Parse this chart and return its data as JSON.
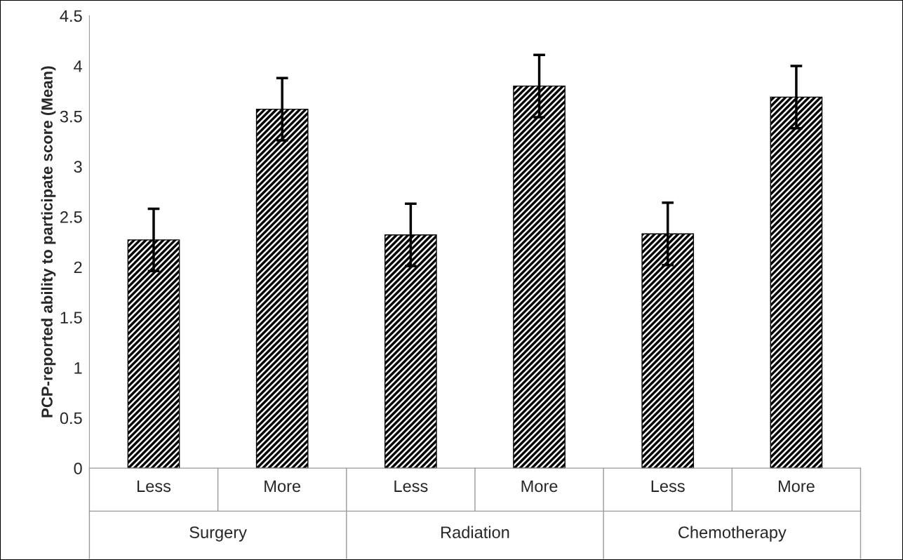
{
  "chart_data": {
    "type": "bar",
    "ylabel": "PCP-reported ability to participate score (Mean)",
    "categories": [
      "Less",
      "More",
      "Less",
      "More",
      "Less",
      "More"
    ],
    "values": [
      2.27,
      3.57,
      2.32,
      3.8,
      2.33,
      3.69
    ],
    "errors": [
      0.31,
      0.31,
      0.31,
      0.31,
      0.31,
      0.31
    ],
    "color": "#000000",
    "ylim": [
      0,
      4.5
    ],
    "yticks": [
      0,
      0.5,
      1,
      1.5,
      2,
      2.5,
      3,
      3.5,
      4,
      4.5
    ],
    "annotations": [
      "Surgery",
      "Radiation",
      "Chemotherapy"
    ]
  }
}
